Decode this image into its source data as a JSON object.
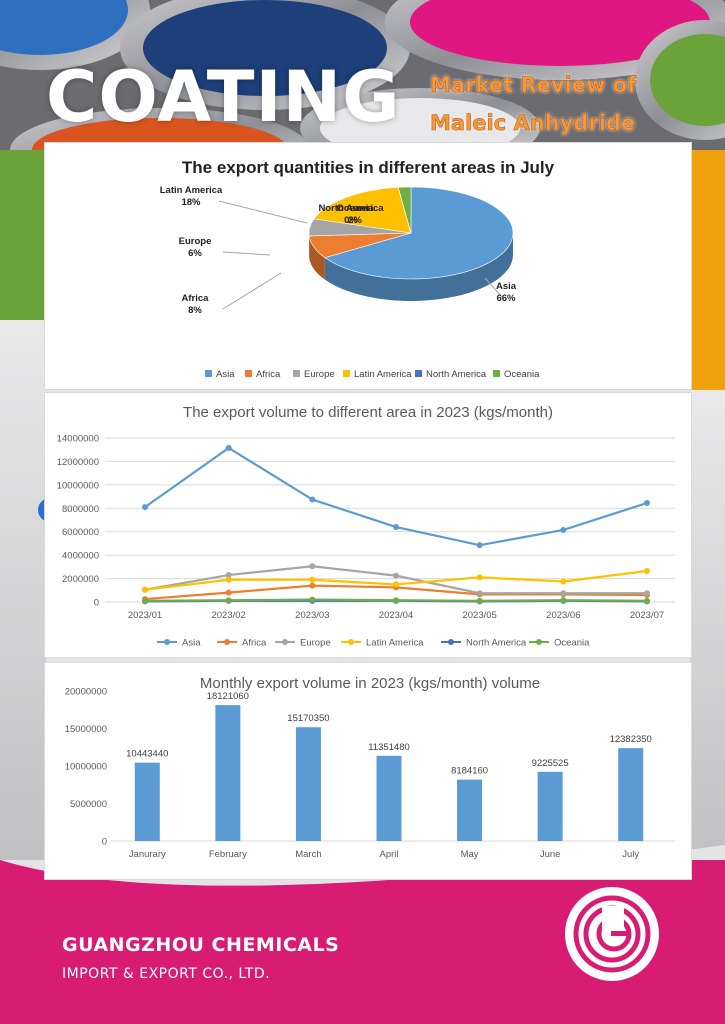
{
  "header": {
    "coating": "COATING",
    "subtitle_line1": "Market Review of",
    "subtitle_line2": "Maleic Anhydride"
  },
  "company": {
    "name": "GUANGZHOU CHEMICALS",
    "tagline": "IMPORT & EXPORT CO., LTD.",
    "logo": "gc-logo-icon"
  },
  "colors": {
    "Asia": "#5b9bd5",
    "Africa": "#ed7d31",
    "Europe": "#a5a5a5",
    "Latin America": "#ffc000",
    "North America": "#4472c4",
    "Oceania": "#70ad47",
    "magenta": "#d81b73"
  },
  "chart_data": [
    {
      "type": "pie",
      "title": "The export quantities in different areas in July",
      "slices": [
        {
          "name": "Asia",
          "value": 66,
          "label": "Asia\n66%"
        },
        {
          "name": "Africa",
          "value": 8,
          "label": "Africa\n8%"
        },
        {
          "name": "Europe",
          "value": 6,
          "label": "Europe\n6%"
        },
        {
          "name": "Latin America",
          "value": 18,
          "label": "Latin America\n18%"
        },
        {
          "name": "North America",
          "value": 0,
          "label": "North America\n0%"
        },
        {
          "name": "Oceania",
          "value": 2,
          "label": "Oceania\n2%"
        }
      ],
      "legend": [
        "Asia",
        "Africa",
        "Europe",
        "Latin America",
        "North America",
        "Oceania"
      ],
      "legend_position": "bottom"
    },
    {
      "type": "line",
      "title": "The export volume to different area in 2023 (kgs/month)",
      "x": [
        "2023/01",
        "2023/02",
        "2023/03",
        "2023/04",
        "2023/05",
        "2023/06",
        "2023/07"
      ],
      "ylim": [
        0,
        14000000
      ],
      "yticks": [
        "0",
        "2000000",
        "4000000",
        "6000000",
        "8000000",
        "10000000",
        "12000000",
        "14000000"
      ],
      "grid": true,
      "legend_position": "bottom",
      "series": [
        {
          "name": "Asia",
          "values": [
            8100000,
            13150000,
            8750000,
            6400000,
            4850000,
            6150000,
            8450000
          ]
        },
        {
          "name": "Africa",
          "values": [
            250000,
            800000,
            1400000,
            1250000,
            650000,
            650000,
            600000
          ]
        },
        {
          "name": "Europe",
          "values": [
            1050000,
            2300000,
            3050000,
            2250000,
            750000,
            750000,
            750000
          ]
        },
        {
          "name": "Latin America",
          "values": [
            1050000,
            1900000,
            1900000,
            1500000,
            2100000,
            1750000,
            2650000
          ]
        },
        {
          "name": "North America",
          "values": [
            50000,
            100000,
            100000,
            100000,
            50000,
            100000,
            50000
          ]
        },
        {
          "name": "Oceania",
          "values": [
            100000,
            150000,
            200000,
            150000,
            100000,
            150000,
            100000
          ]
        }
      ]
    },
    {
      "type": "bar",
      "title": "Monthly export volume in 2023 (kgs/month) volume",
      "categories": [
        "Janurary",
        "February",
        "March",
        "April",
        "May",
        "June",
        "July"
      ],
      "values": [
        10443440,
        18121060,
        15170350,
        11351480,
        8184160,
        9225525,
        12382350
      ],
      "labels": [
        "10443440",
        "18121060",
        "15170350",
        "11351480",
        "8184160",
        "9225525",
        "12382350"
      ],
      "ylim": [
        0,
        20000000
      ],
      "yticks": [
        "0",
        "5000000",
        "10000000",
        "15000000",
        "20000000"
      ],
      "grid": false
    }
  ]
}
